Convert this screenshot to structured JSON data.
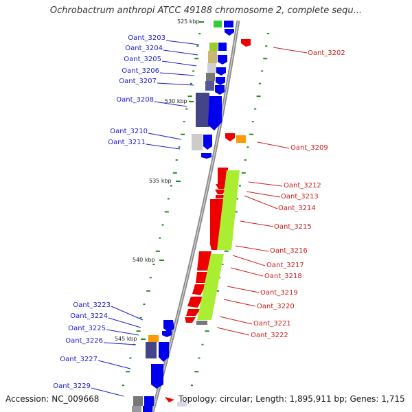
{
  "title": "Ochrobactrum anthropi ATCC 49188 chromosome 2, complete sequ...",
  "accession": "Accession: NC_009668",
  "topology": "Topology: circular; Length: 1,895,911 bp; Genes: 1,715",
  "colors": {
    "forward_label": "#1a1acc",
    "reverse_label": "#cc1a1a",
    "forward_gene": "#0000ee",
    "reverse_gene": "#ee0000",
    "backbone": "#999999",
    "tick": "#1a8c1a"
  },
  "kbp_marks": [
    {
      "label": "525 kbp",
      "kbp": 525
    },
    {
      "label": "530 kbp",
      "kbp": 530
    },
    {
      "label": "535 kbp",
      "kbp": 535
    },
    {
      "label": "540 kbp",
      "kbp": 540
    },
    {
      "label": "545 kbp",
      "kbp": 545
    }
  ],
  "forward_genes": [
    {
      "label": "Oant_3203"
    },
    {
      "label": "Oant_3204"
    },
    {
      "label": "Oant_3205"
    },
    {
      "label": "Oant_3206"
    },
    {
      "label": "Oant_3207"
    },
    {
      "label": "Oant_3208"
    },
    {
      "label": "Oant_3210"
    },
    {
      "label": "Oant_3211"
    },
    {
      "label": "Oant_3223"
    },
    {
      "label": "Oant_3224"
    },
    {
      "label": "Oant_3225"
    },
    {
      "label": "Oant_3226"
    },
    {
      "label": "Oant_3227"
    },
    {
      "label": "Oant_3229"
    }
  ],
  "reverse_genes": [
    {
      "label": "Oant_3202"
    },
    {
      "label": "Oant_3209"
    },
    {
      "label": "Oant_3212"
    },
    {
      "label": "Oant_3213"
    },
    {
      "label": "Oant_3214"
    },
    {
      "label": "Oant_3215"
    },
    {
      "label": "Oant_3216"
    },
    {
      "label": "Oant_3217"
    },
    {
      "label": "Oant_3218"
    },
    {
      "label": "Oant_3219"
    },
    {
      "label": "Oant_3220"
    },
    {
      "label": "Oant_3221"
    },
    {
      "label": "Oant_3222"
    }
  ]
}
